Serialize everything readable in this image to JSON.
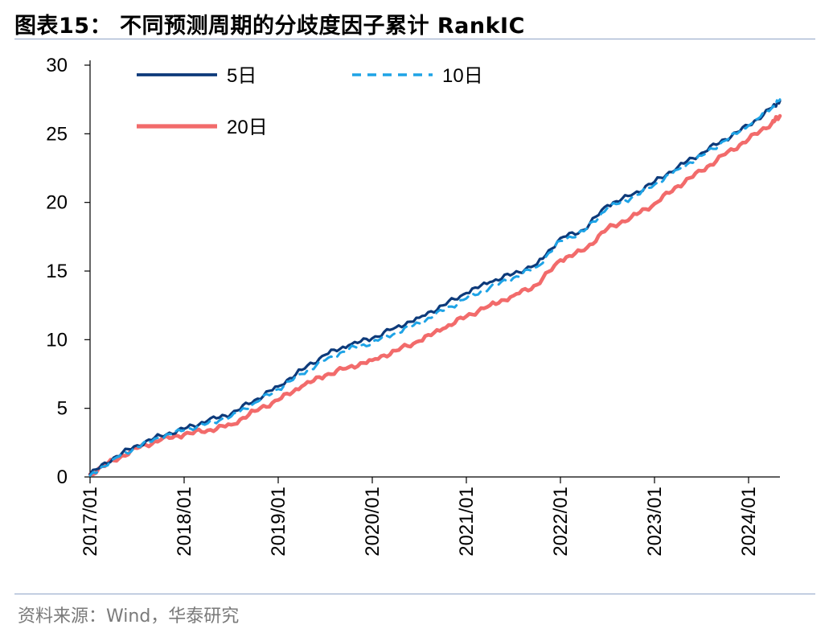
{
  "header": {
    "title": "图表15：  不同预测周期的分歧度因子累计 RankIC"
  },
  "footer": {
    "source": "资料来源：Wind，华泰研究"
  },
  "chart_data": {
    "type": "line",
    "title": "图表15：  不同预测周期的分歧度因子累计 RankIC",
    "xlabel": "",
    "ylabel": "",
    "ylim": [
      0,
      30
    ],
    "yticks": [
      "0",
      "5",
      "10",
      "15",
      "20",
      "25",
      "30"
    ],
    "xticks": [
      "2017/01",
      "2018/01",
      "2019/01",
      "2020/01",
      "2021/01",
      "2022/01",
      "2023/01",
      "2024/01"
    ],
    "xlim": [
      "2017/01",
      "2024/05"
    ],
    "grid": false,
    "legend_position": "top-left",
    "x": [
      "2017/01",
      "2017/04",
      "2017/07",
      "2017/10",
      "2018/01",
      "2018/04",
      "2018/07",
      "2018/10",
      "2019/01",
      "2019/04",
      "2019/07",
      "2019/10",
      "2020/01",
      "2020/04",
      "2020/07",
      "2020/10",
      "2021/01",
      "2021/04",
      "2021/07",
      "2021/10",
      "2022/01",
      "2022/04",
      "2022/07",
      "2022/10",
      "2023/01",
      "2023/04",
      "2023/07",
      "2023/10",
      "2024/01",
      "2024/04",
      "2024/05"
    ],
    "series": [
      {
        "name": "5日",
        "color": "#0d3a7a",
        "style": "solid",
        "values": [
          0.2,
          1.4,
          2.3,
          3.0,
          3.5,
          4.1,
          4.6,
          5.6,
          6.6,
          7.8,
          8.9,
          9.6,
          10.1,
          10.9,
          11.6,
          12.5,
          13.4,
          14.2,
          14.8,
          15.5,
          17.4,
          18.0,
          19.8,
          20.5,
          21.5,
          22.6,
          23.6,
          24.6,
          25.6,
          26.9,
          27.4
        ]
      },
      {
        "name": "10日",
        "color": "#1ea3e6",
        "style": "dashed",
        "values": [
          0.1,
          1.3,
          2.2,
          2.9,
          3.4,
          3.9,
          4.4,
          5.4,
          6.4,
          7.5,
          8.5,
          9.3,
          9.8,
          10.5,
          11.2,
          12.1,
          13.0,
          13.8,
          14.5,
          15.3,
          17.2,
          17.9,
          19.6,
          20.3,
          21.3,
          22.4,
          23.4,
          24.5,
          25.6,
          26.9,
          27.5
        ]
      },
      {
        "name": "20日",
        "color": "#f26b6b",
        "style": "solid",
        "values": [
          0.2,
          1.2,
          2.1,
          2.7,
          3.1,
          3.4,
          3.8,
          4.8,
          5.6,
          6.6,
          7.4,
          8.0,
          8.5,
          9.2,
          9.9,
          10.8,
          11.7,
          12.5,
          13.2,
          14.0,
          15.8,
          16.5,
          18.1,
          18.9,
          19.9,
          21.2,
          22.3,
          23.5,
          24.6,
          25.8,
          26.3
        ]
      }
    ]
  }
}
